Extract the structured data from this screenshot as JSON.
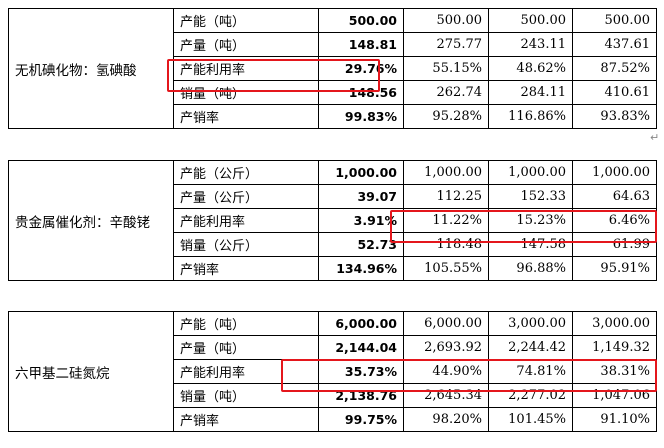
{
  "blocks": [
    {
      "category": "无机碘化物：氢碘酸",
      "rows": [
        {
          "item": "产能（吨）",
          "values": [
            "500.00",
            "500.00",
            "500.00",
            "500.00"
          ]
        },
        {
          "item": "产量（吨）",
          "values": [
            "148.81",
            "275.77",
            "243.11",
            "437.61"
          ]
        },
        {
          "item": "产能利用率",
          "values": [
            "29.76%",
            "55.15%",
            "48.62%",
            "87.52%"
          ]
        },
        {
          "item": "销量（吨）",
          "values": [
            "148.56",
            "262.74",
            "284.11",
            "410.61"
          ]
        },
        {
          "item": "产销率",
          "values": [
            "99.83%",
            "95.28%",
            "116.86%",
            "93.83%"
          ]
        }
      ]
    },
    {
      "category": "贵金属催化剂：辛酸铑",
      "rows": [
        {
          "item": "产能（公斤）",
          "values": [
            "1,000.00",
            "1,000.00",
            "1,000.00",
            "1,000.00"
          ]
        },
        {
          "item": "产量（公斤）",
          "values": [
            "39.07",
            "112.25",
            "152.33",
            "64.63"
          ]
        },
        {
          "item": "产能利用率",
          "values": [
            "3.91%",
            "11.22%",
            "15.23%",
            "6.46%"
          ]
        },
        {
          "item": "销量（公斤）",
          "values": [
            "52.73",
            "118.48",
            "147.58",
            "61.99"
          ]
        },
        {
          "item": "产销率",
          "values": [
            "134.96%",
            "105.55%",
            "96.88%",
            "95.91%"
          ]
        }
      ]
    },
    {
      "category": "六甲基二硅氮烷",
      "rows": [
        {
          "item": "产能（吨）",
          "values": [
            "6,000.00",
            "6,000.00",
            "3,000.00",
            "3,000.00"
          ]
        },
        {
          "item": "产量（吨）",
          "values": [
            "2,144.04",
            "2,693.92",
            "2,244.42",
            "1,149.32"
          ]
        },
        {
          "item": "产能利用率",
          "values": [
            "35.73%",
            "44.90%",
            "74.81%",
            "38.31%"
          ]
        },
        {
          "item": "销量（吨）",
          "values": [
            "2,138.76",
            "2,645.34",
            "2,277.02",
            "1,047.06"
          ]
        },
        {
          "item": "产销率",
          "values": [
            "99.75%",
            "98.20%",
            "101.45%",
            "91.10%"
          ]
        }
      ]
    }
  ],
  "highlight_color": "#e4161c"
}
